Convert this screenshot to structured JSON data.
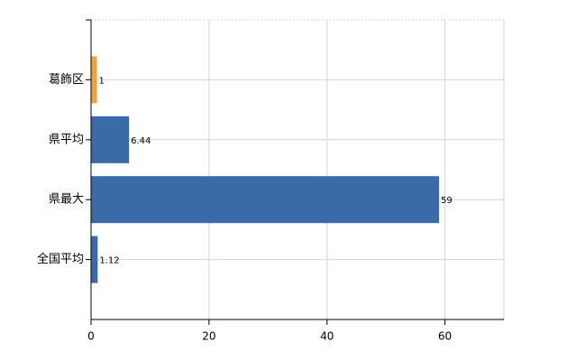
{
  "chart_data": {
    "type": "hbar",
    "categories": [
      "葛飾区",
      "県平均",
      "県最大",
      "全国平均"
    ],
    "values": [
      1,
      6.44,
      59,
      1.12
    ],
    "colors": [
      "#f0a23a",
      "#3a6aa8",
      "#3a6aa8",
      "#3a6aa8"
    ],
    "xlim": [
      0,
      70
    ],
    "xticks": [
      0,
      20,
      40,
      60
    ],
    "grid": true
  }
}
